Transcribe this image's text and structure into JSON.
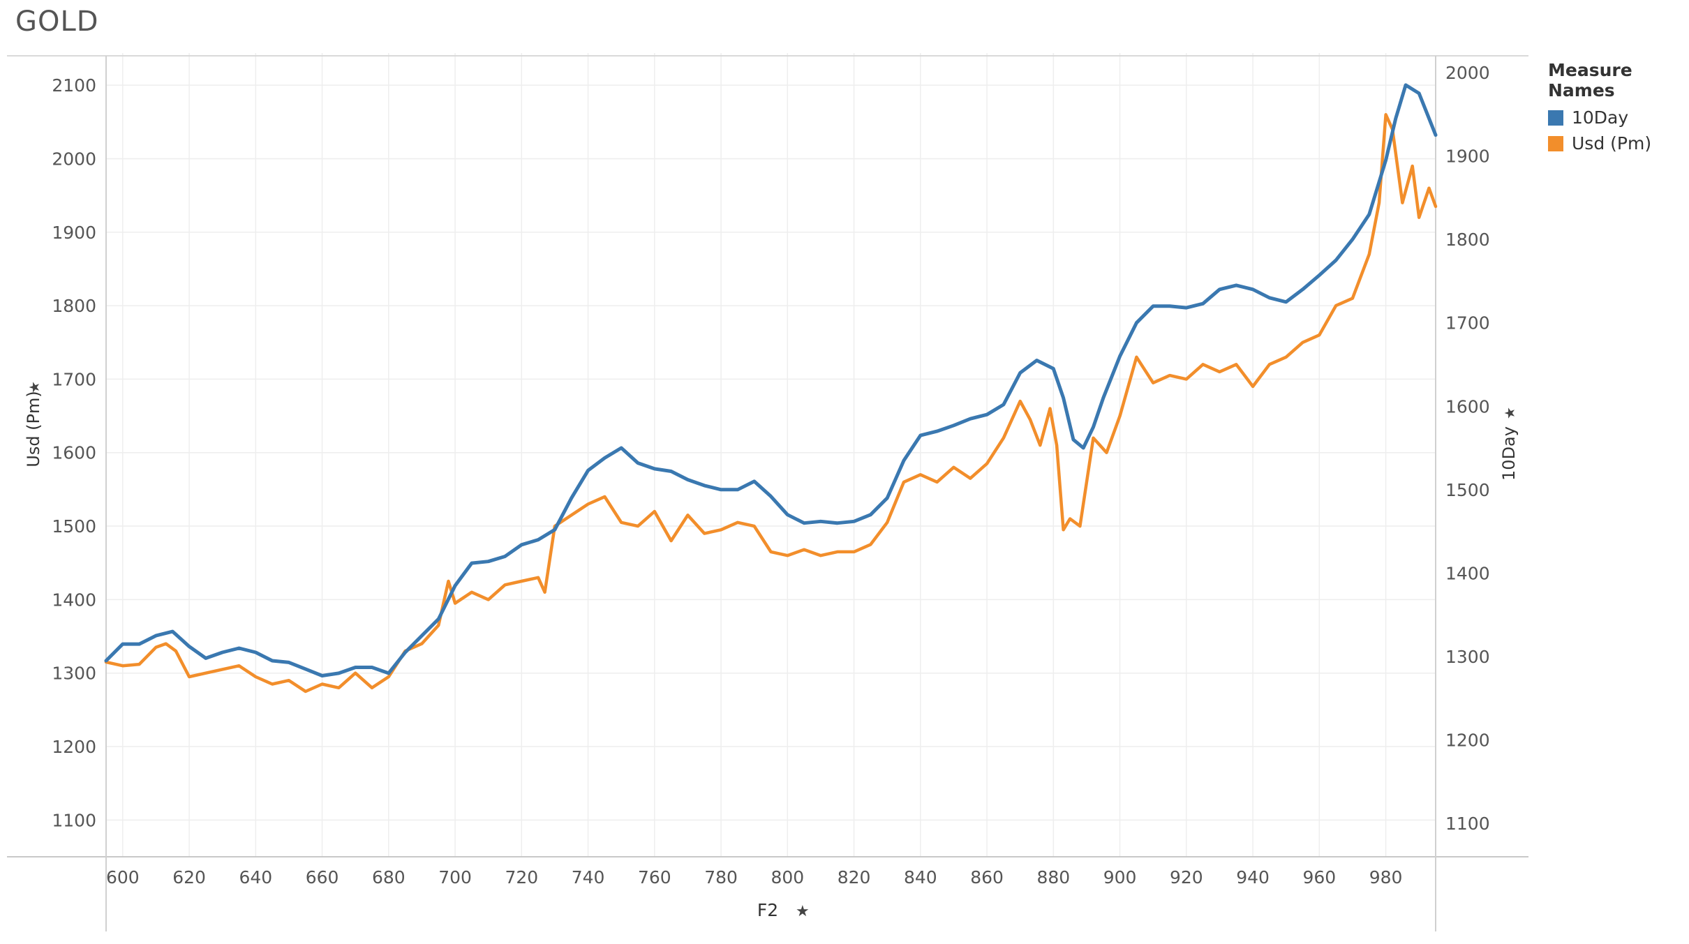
{
  "chart_data": {
    "type": "line",
    "title": "GOLD",
    "xlabel": "F2",
    "ylabel_left": "Usd (Pm)",
    "ylabel_right": "10Day",
    "x_range": [
      595,
      995
    ],
    "x_ticks": [
      600,
      620,
      640,
      660,
      680,
      700,
      720,
      740,
      760,
      780,
      800,
      820,
      840,
      860,
      880,
      900,
      920,
      940,
      960,
      980
    ],
    "ylim_left": [
      1050,
      2140
    ],
    "yticks_left": [
      1100,
      1200,
      1300,
      1400,
      1500,
      1600,
      1700,
      1800,
      1900,
      2000,
      2100
    ],
    "ylim_right": [
      1060,
      2020
    ],
    "yticks_right": [
      1100,
      1200,
      1300,
      1400,
      1500,
      1600,
      1700,
      1800,
      1900,
      2000
    ],
    "grid": true,
    "legend": {
      "title": "Measure Names",
      "position": "top-right"
    },
    "series": [
      {
        "name": "10Day",
        "axis": "right",
        "color": "#3a78b0",
        "x": [
          595,
          600,
          605,
          610,
          615,
          620,
          625,
          630,
          635,
          640,
          645,
          650,
          655,
          660,
          665,
          670,
          675,
          680,
          685,
          690,
          695,
          700,
          705,
          710,
          715,
          720,
          725,
          730,
          735,
          740,
          745,
          750,
          755,
          760,
          765,
          770,
          775,
          780,
          785,
          790,
          795,
          800,
          805,
          810,
          815,
          820,
          825,
          830,
          835,
          840,
          845,
          850,
          855,
          860,
          865,
          870,
          875,
          880,
          883,
          886,
          889,
          892,
          895,
          900,
          905,
          910,
          915,
          920,
          925,
          930,
          935,
          940,
          945,
          950,
          955,
          960,
          965,
          970,
          975,
          980,
          983,
          986,
          990,
          995
        ],
        "values": [
          1295,
          1315,
          1315,
          1325,
          1330,
          1312,
          1298,
          1305,
          1310,
          1305,
          1295,
          1293,
          1285,
          1277,
          1280,
          1287,
          1287,
          1280,
          1305,
          1325,
          1345,
          1385,
          1412,
          1414,
          1420,
          1434,
          1440,
          1452,
          1490,
          1523,
          1538,
          1550,
          1532,
          1525,
          1522,
          1512,
          1505,
          1500,
          1500,
          1510,
          1492,
          1470,
          1460,
          1462,
          1460,
          1462,
          1470,
          1490,
          1535,
          1565,
          1570,
          1577,
          1585,
          1590,
          1602,
          1640,
          1655,
          1645,
          1610,
          1560,
          1550,
          1575,
          1610,
          1660,
          1700,
          1720,
          1720,
          1718,
          1723,
          1740,
          1745,
          1740,
          1730,
          1725,
          1740,
          1757,
          1775,
          1800,
          1830,
          1895,
          1945,
          1985,
          1975,
          1925
        ]
      },
      {
        "name": "Usd (Pm)",
        "axis": "left",
        "color": "#f28e2b",
        "x": [
          595,
          600,
          605,
          610,
          613,
          616,
          620,
          625,
          630,
          635,
          640,
          645,
          650,
          655,
          660,
          665,
          670,
          675,
          680,
          685,
          690,
          695,
          698,
          700,
          705,
          710,
          715,
          720,
          725,
          727,
          730,
          735,
          740,
          745,
          750,
          755,
          760,
          765,
          770,
          775,
          780,
          785,
          790,
          795,
          800,
          805,
          810,
          815,
          820,
          825,
          830,
          835,
          840,
          845,
          850,
          855,
          860,
          865,
          870,
          873,
          876,
          879,
          881,
          883,
          885,
          888,
          892,
          896,
          900,
          905,
          910,
          915,
          920,
          925,
          930,
          935,
          940,
          945,
          950,
          955,
          960,
          965,
          970,
          975,
          978,
          980,
          982,
          985,
          988,
          990,
          993,
          995
        ],
        "values": [
          1315,
          1310,
          1312,
          1335,
          1340,
          1330,
          1295,
          1300,
          1305,
          1310,
          1295,
          1285,
          1290,
          1275,
          1285,
          1280,
          1300,
          1280,
          1295,
          1330,
          1340,
          1365,
          1425,
          1395,
          1410,
          1400,
          1420,
          1425,
          1430,
          1410,
          1500,
          1515,
          1530,
          1540,
          1505,
          1500,
          1520,
          1480,
          1515,
          1490,
          1495,
          1505,
          1500,
          1465,
          1460,
          1468,
          1460,
          1465,
          1465,
          1475,
          1505,
          1560,
          1570,
          1560,
          1580,
          1565,
          1585,
          1620,
          1670,
          1645,
          1610,
          1660,
          1610,
          1495,
          1510,
          1500,
          1620,
          1600,
          1650,
          1730,
          1695,
          1705,
          1700,
          1720,
          1710,
          1720,
          1690,
          1720,
          1730,
          1750,
          1760,
          1800,
          1810,
          1870,
          1940,
          2060,
          2040,
          1940,
          1990,
          1920,
          1960,
          1935
        ]
      }
    ]
  }
}
